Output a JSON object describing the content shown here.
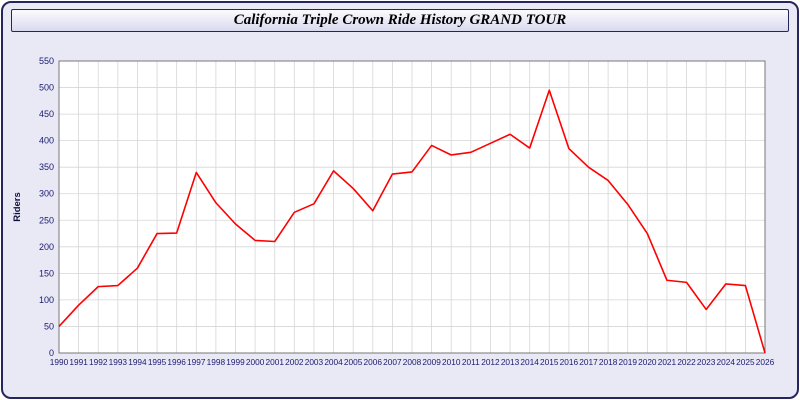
{
  "title": "California Triple Crown Ride History GRAND TOUR",
  "colors": {
    "background": "#e9e9f6",
    "frame_border": "#26265c",
    "plot_bg": "#ffffff",
    "plot_border": "#777777",
    "grid": "#d6d6d6",
    "axis_text": "#1a1a70",
    "line": "#ff0000",
    "ylabel_text": "#101040"
  },
  "chart_data": {
    "type": "line",
    "title": "California Triple Crown Ride History GRAND TOUR",
    "xlabel": "",
    "ylabel": "Riders",
    "ylim": [
      0,
      550
    ],
    "ytick_step": 50,
    "grid": true,
    "legend": "none",
    "categories": [
      1990,
      1991,
      1992,
      1993,
      1994,
      1995,
      1996,
      1997,
      1998,
      1999,
      2000,
      2001,
      2002,
      2003,
      2004,
      2005,
      2006,
      2007,
      2008,
      2009,
      2010,
      2011,
      2012,
      2013,
      2014,
      2015,
      2016,
      2017,
      2018,
      2019,
      2020,
      2021,
      2022,
      2023,
      2024,
      2025,
      2026
    ],
    "series": [
      {
        "name": "Riders",
        "color": "#ff0000",
        "values": [
          50,
          90,
          125,
          127,
          160,
          225,
          226,
          340,
          283,
          243,
          212,
          210,
          265,
          281,
          343,
          310,
          268,
          337,
          341,
          391,
          373,
          378,
          395,
          412,
          386,
          495,
          385,
          350,
          325,
          280,
          225,
          137,
          133,
          82,
          130,
          127,
          0
        ]
      }
    ]
  }
}
